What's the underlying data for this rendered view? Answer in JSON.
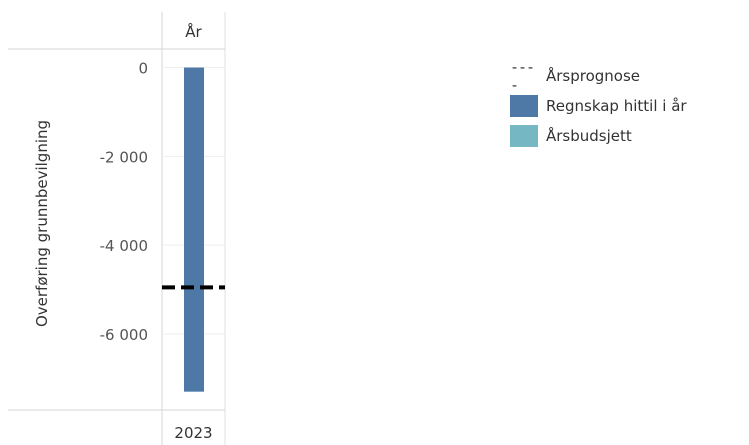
{
  "chart_data": {
    "type": "bar",
    "column_header": "År",
    "categories": [
      "2023"
    ],
    "ylabel": "Overføring grunnbevilgning",
    "ylim": [
      -7600,
      350
    ],
    "yticks": [
      0,
      -2000,
      -4000,
      -6000
    ],
    "ytick_labels": [
      "0",
      "-2 000",
      "-4 000",
      "-6 000"
    ],
    "series": [
      {
        "name": "Regnskap hittil i år",
        "values": [
          -7300
        ],
        "color": "#4e79a7"
      },
      {
        "name": "Årsbudsjett",
        "values": [
          0
        ],
        "color": "#76b7c4"
      }
    ],
    "reference_lines": [
      {
        "name": "Årsprognose",
        "values": [
          -4950
        ],
        "color": "#000000",
        "style": "dashed"
      }
    ],
    "legend": {
      "position": "right",
      "items": [
        {
          "label": "Årsprognose",
          "marker": "----",
          "type": "dashed-line"
        },
        {
          "label": "Regnskap hittil i år",
          "type": "swatch",
          "color": "#4e79a7"
        },
        {
          "label": "Årsbudsjett",
          "type": "swatch",
          "color": "#76b7c4"
        }
      ]
    },
    "grid": true
  }
}
